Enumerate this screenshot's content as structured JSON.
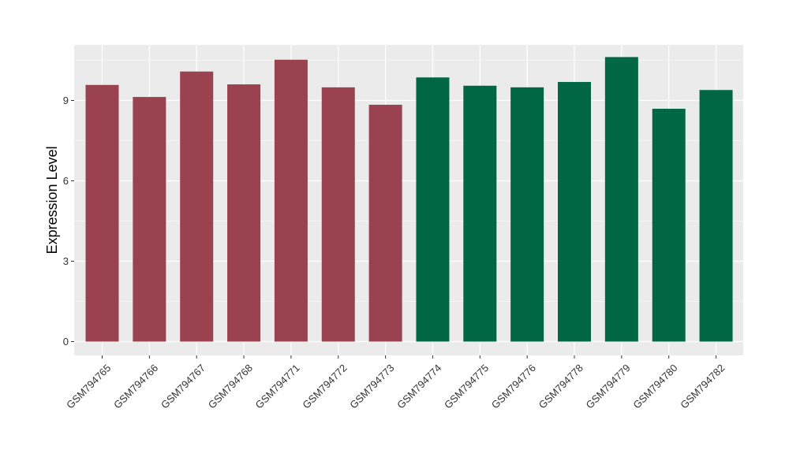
{
  "colors": {
    "panel_background": "#EBEBEB",
    "grid": "#FFFFFF",
    "tick_text": "#333333",
    "group_1": "#9A4250",
    "group_2": "#006644"
  },
  "chart_data": {
    "type": "bar",
    "title": "",
    "xlabel": "",
    "ylabel": "Expression Level",
    "ylim": [
      0,
      10.95
    ],
    "yticks": [
      0,
      3,
      6,
      9
    ],
    "ytick_labels": [
      "0",
      "3",
      "6",
      "9"
    ],
    "grid": true,
    "legend": "none",
    "categories": [
      "GSM794765",
      "GSM794766",
      "GSM794767",
      "GSM794768",
      "GSM794771",
      "GSM794772",
      "GSM794773",
      "GSM794774",
      "GSM794775",
      "GSM794776",
      "GSM794778",
      "GSM794779",
      "GSM794780",
      "GSM794782"
    ],
    "values": [
      9.58,
      9.13,
      10.08,
      9.6,
      10.52,
      9.49,
      8.84,
      9.86,
      9.55,
      9.49,
      9.69,
      10.62,
      8.69,
      9.39
    ],
    "bar_colors": [
      "#9A4250",
      "#9A4250",
      "#9A4250",
      "#9A4250",
      "#9A4250",
      "#9A4250",
      "#9A4250",
      "#006644",
      "#006644",
      "#006644",
      "#006644",
      "#006644",
      "#006644",
      "#006644"
    ]
  }
}
